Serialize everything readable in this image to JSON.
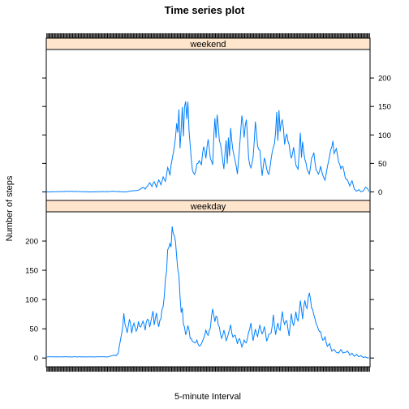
{
  "chart_data": {
    "type": "line",
    "title": "Time series plot",
    "xlabel": "5-minute Interval",
    "ylabel": "Number of steps",
    "line_color": "#0080ff",
    "strip_color": "#ffe5cc",
    "x_count": 288,
    "xlim": [
      0,
      288
    ],
    "ylim": [
      -15,
      250
    ],
    "y_ticks": [
      0,
      50,
      100,
      150,
      200
    ],
    "panels": [
      {
        "label": "weekend",
        "y_tick_side": "right",
        "keypoints": [
          [
            0,
            0
          ],
          [
            20,
            1
          ],
          [
            40,
            0
          ],
          [
            60,
            1
          ],
          [
            70,
            0
          ],
          [
            82,
            3
          ],
          [
            86,
            8
          ],
          [
            88,
            5
          ],
          [
            92,
            16
          ],
          [
            94,
            10
          ],
          [
            96,
            18
          ],
          [
            98,
            8
          ],
          [
            100,
            22
          ],
          [
            102,
            12
          ],
          [
            104,
            28
          ],
          [
            106,
            18
          ],
          [
            108,
            42
          ],
          [
            110,
            30
          ],
          [
            112,
            60
          ],
          [
            114,
            85
          ],
          [
            116,
            120
          ],
          [
            117,
            100
          ],
          [
            118,
            140
          ],
          [
            119,
            80
          ],
          [
            120,
            110
          ],
          [
            121,
            155
          ],
          [
            122,
            100
          ],
          [
            123,
            150
          ],
          [
            124,
            165
          ],
          [
            125,
            130
          ],
          [
            126,
            162
          ],
          [
            127,
            110
          ],
          [
            128,
            80
          ],
          [
            129,
            60
          ],
          [
            130,
            40
          ],
          [
            132,
            30
          ],
          [
            134,
            50
          ],
          [
            136,
            55
          ],
          [
            138,
            50
          ],
          [
            140,
            80
          ],
          [
            142,
            60
          ],
          [
            144,
            90
          ],
          [
            146,
            60
          ],
          [
            148,
            50
          ],
          [
            150,
            135
          ],
          [
            151,
            100
          ],
          [
            152,
            140
          ],
          [
            154,
            95
          ],
          [
            156,
            70
          ],
          [
            158,
            40
          ],
          [
            160,
            90
          ],
          [
            161,
            50
          ],
          [
            162,
            100
          ],
          [
            163,
            60
          ],
          [
            164,
            110
          ],
          [
            166,
            70
          ],
          [
            168,
            55
          ],
          [
            170,
            30
          ],
          [
            172,
            80
          ],
          [
            174,
            130
          ],
          [
            176,
            95
          ],
          [
            178,
            125
          ],
          [
            180,
            60
          ],
          [
            182,
            40
          ],
          [
            184,
            60
          ],
          [
            186,
            120
          ],
          [
            188,
            80
          ],
          [
            190,
            70
          ],
          [
            192,
            30
          ],
          [
            194,
            60
          ],
          [
            196,
            40
          ],
          [
            198,
            30
          ],
          [
            200,
            60
          ],
          [
            202,
            80
          ],
          [
            204,
            100
          ],
          [
            205,
            140
          ],
          [
            206,
            95
          ],
          [
            207,
            145
          ],
          [
            208,
            110
          ],
          [
            210,
            130
          ],
          [
            212,
            85
          ],
          [
            214,
            100
          ],
          [
            216,
            80
          ],
          [
            218,
            60
          ],
          [
            220,
            75
          ],
          [
            222,
            50
          ],
          [
            224,
            40
          ],
          [
            226,
            105
          ],
          [
            227,
            60
          ],
          [
            228,
            90
          ],
          [
            230,
            60
          ],
          [
            232,
            40
          ],
          [
            234,
            30
          ],
          [
            236,
            60
          ],
          [
            238,
            70
          ],
          [
            240,
            40
          ],
          [
            242,
            30
          ],
          [
            244,
            45
          ],
          [
            246,
            30
          ],
          [
            248,
            20
          ],
          [
            250,
            45
          ],
          [
            252,
            60
          ],
          [
            254,
            80
          ],
          [
            255,
            85
          ],
          [
            256,
            65
          ],
          [
            258,
            80
          ],
          [
            260,
            55
          ],
          [
            262,
            40
          ],
          [
            264,
            45
          ],
          [
            266,
            25
          ],
          [
            268,
            20
          ],
          [
            270,
            10
          ],
          [
            272,
            20
          ],
          [
            274,
            5
          ],
          [
            276,
            1
          ],
          [
            278,
            4
          ],
          [
            280,
            0
          ],
          [
            282,
            2
          ],
          [
            284,
            8
          ],
          [
            286,
            5
          ],
          [
            287,
            1
          ]
        ]
      },
      {
        "label": "weekday",
        "y_tick_side": "left",
        "keypoints": [
          [
            0,
            2
          ],
          [
            20,
            2
          ],
          [
            40,
            2
          ],
          [
            55,
            2
          ],
          [
            60,
            5
          ],
          [
            62,
            4
          ],
          [
            64,
            8
          ],
          [
            66,
            30
          ],
          [
            68,
            55
          ],
          [
            69,
            75
          ],
          [
            70,
            60
          ],
          [
            72,
            45
          ],
          [
            74,
            70
          ],
          [
            76,
            45
          ],
          [
            78,
            60
          ],
          [
            80,
            45
          ],
          [
            82,
            60
          ],
          [
            84,
            50
          ],
          [
            86,
            65
          ],
          [
            88,
            50
          ],
          [
            90,
            70
          ],
          [
            92,
            55
          ],
          [
            94,
            75
          ],
          [
            95,
            85
          ],
          [
            96,
            60
          ],
          [
            98,
            75
          ],
          [
            100,
            55
          ],
          [
            102,
            70
          ],
          [
            104,
            90
          ],
          [
            106,
            130
          ],
          [
            108,
            180
          ],
          [
            110,
            200
          ],
          [
            111,
            190
          ],
          [
            112,
            230
          ],
          [
            113,
            215
          ],
          [
            114,
            210
          ],
          [
            115,
            200
          ],
          [
            116,
            170
          ],
          [
            118,
            140
          ],
          [
            119,
            100
          ],
          [
            120,
            80
          ],
          [
            121,
            90
          ],
          [
            122,
            60
          ],
          [
            124,
            40
          ],
          [
            126,
            55
          ],
          [
            128,
            35
          ],
          [
            130,
            30
          ],
          [
            132,
            25
          ],
          [
            134,
            30
          ],
          [
            136,
            20
          ],
          [
            138,
            25
          ],
          [
            140,
            35
          ],
          [
            142,
            45
          ],
          [
            144,
            40
          ],
          [
            146,
            55
          ],
          [
            148,
            80
          ],
          [
            150,
            65
          ],
          [
            152,
            70
          ],
          [
            154,
            50
          ],
          [
            156,
            35
          ],
          [
            158,
            45
          ],
          [
            160,
            30
          ],
          [
            162,
            40
          ],
          [
            164,
            55
          ],
          [
            166,
            35
          ],
          [
            168,
            40
          ],
          [
            170,
            25
          ],
          [
            172,
            35
          ],
          [
            174,
            20
          ],
          [
            176,
            30
          ],
          [
            178,
            25
          ],
          [
            180,
            45
          ],
          [
            182,
            60
          ],
          [
            184,
            30
          ],
          [
            186,
            50
          ],
          [
            188,
            35
          ],
          [
            190,
            60
          ],
          [
            192,
            40
          ],
          [
            194,
            55
          ],
          [
            196,
            30
          ],
          [
            198,
            40
          ],
          [
            200,
            45
          ],
          [
            202,
            70
          ],
          [
            204,
            40
          ],
          [
            206,
            60
          ],
          [
            208,
            45
          ],
          [
            210,
            80
          ],
          [
            212,
            55
          ],
          [
            214,
            65
          ],
          [
            216,
            40
          ],
          [
            218,
            75
          ],
          [
            220,
            55
          ],
          [
            222,
            80
          ],
          [
            224,
            60
          ],
          [
            226,
            95
          ],
          [
            228,
            70
          ],
          [
            230,
            100
          ],
          [
            232,
            85
          ],
          [
            234,
            115
          ],
          [
            236,
            90
          ],
          [
            238,
            70
          ],
          [
            240,
            60
          ],
          [
            242,
            50
          ],
          [
            244,
            45
          ],
          [
            246,
            30
          ],
          [
            248,
            35
          ],
          [
            250,
            20
          ],
          [
            252,
            25
          ],
          [
            254,
            12
          ],
          [
            256,
            15
          ],
          [
            258,
            10
          ],
          [
            260,
            8
          ],
          [
            262,
            15
          ],
          [
            264,
            8
          ],
          [
            266,
            10
          ],
          [
            268,
            12
          ],
          [
            270,
            5
          ],
          [
            272,
            8
          ],
          [
            274,
            3
          ],
          [
            276,
            6
          ],
          [
            278,
            2
          ],
          [
            280,
            4
          ],
          [
            282,
            1
          ],
          [
            284,
            2
          ],
          [
            286,
            0
          ],
          [
            287,
            1
          ]
        ]
      }
    ]
  }
}
